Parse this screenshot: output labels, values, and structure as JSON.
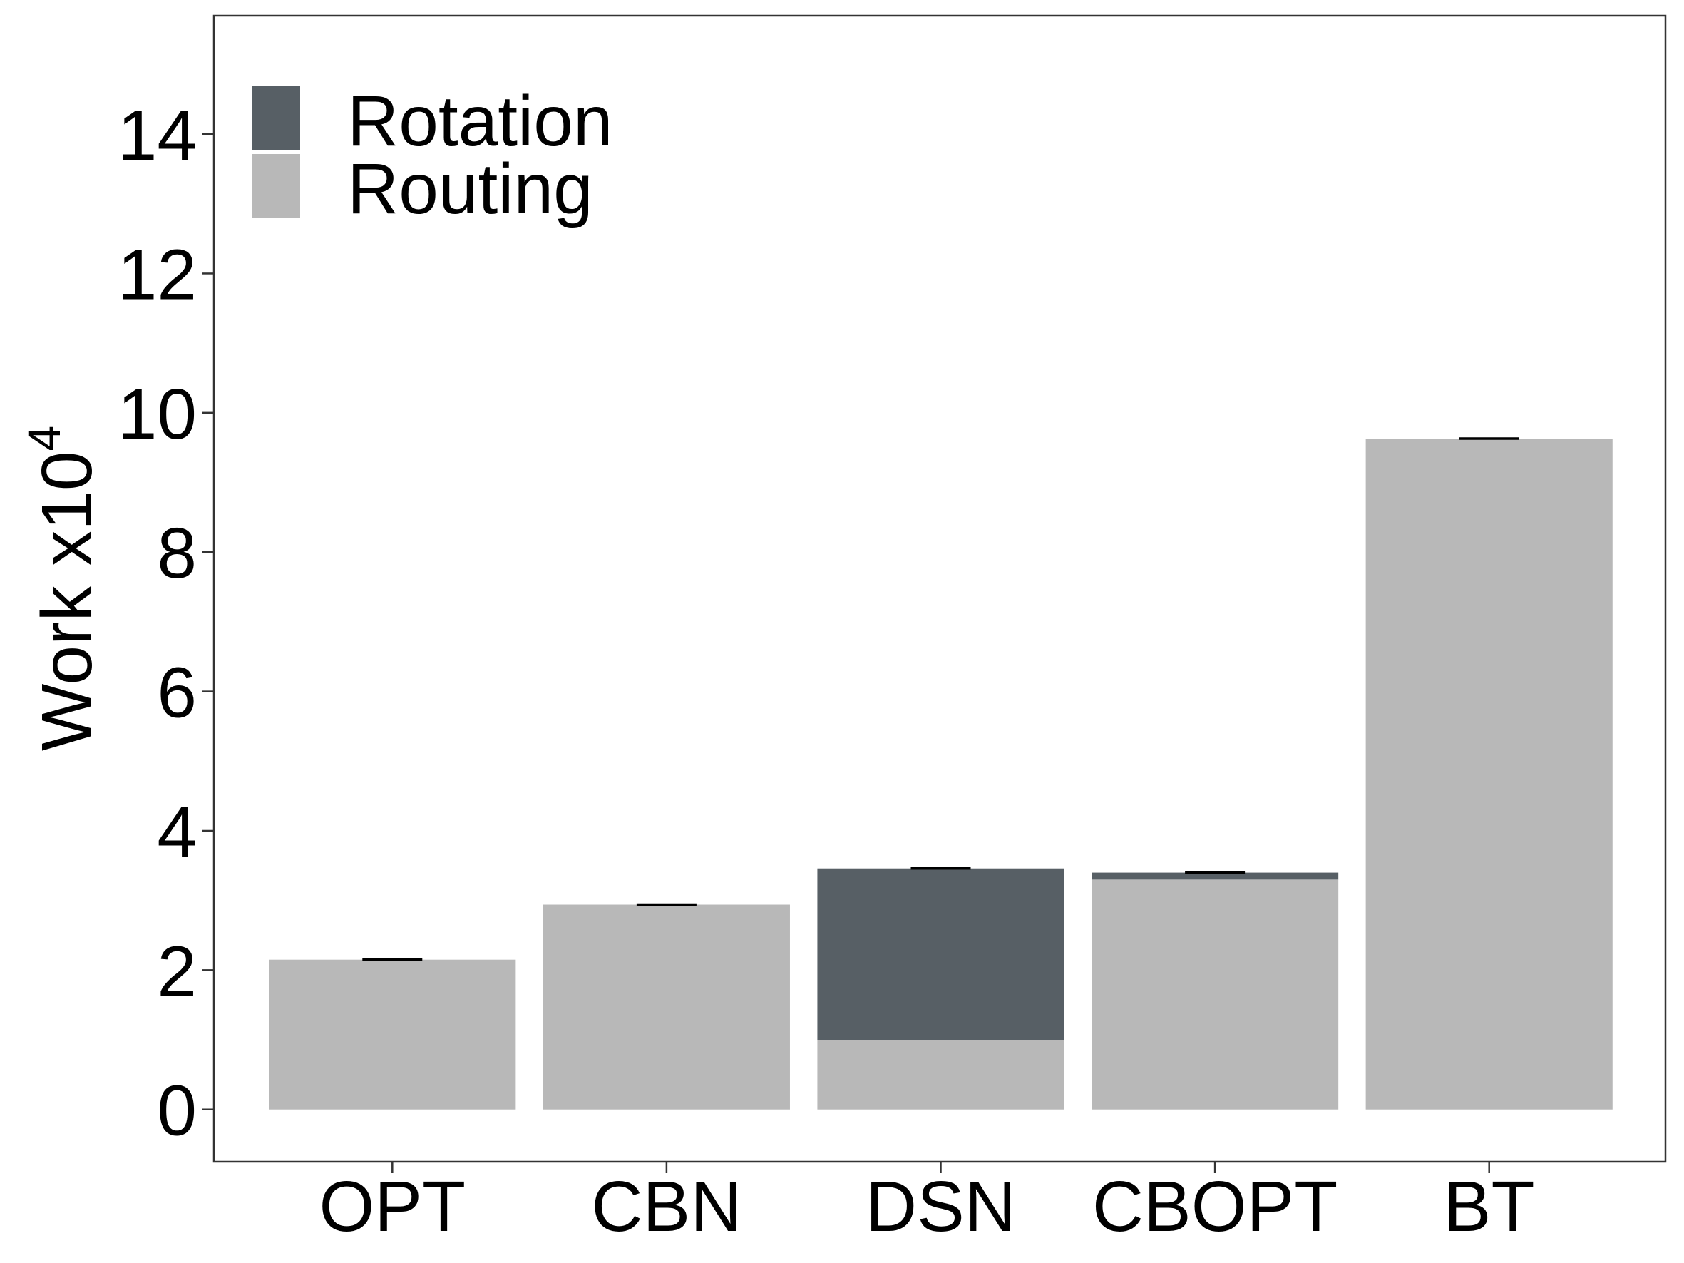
{
  "chart_data": {
    "type": "bar",
    "stacked": true,
    "categories": [
      "OPT",
      "CBN",
      "DSN",
      "CBOPT",
      "BT"
    ],
    "series": [
      {
        "name": "Routing",
        "color": "#b8b8b8",
        "values": [
          2.15,
          2.94,
          1.0,
          3.3,
          9.62
        ]
      },
      {
        "name": "Rotation",
        "color": "#575f65",
        "values": [
          0.0,
          0.0,
          2.46,
          0.1,
          0.0
        ]
      }
    ],
    "error_caps": [
      2.15,
      2.94,
      3.46,
      3.4,
      9.63
    ],
    "ylabel": "Work x10",
    "ylabel_superscript": "4",
    "xlabel": "",
    "ylim": [
      -0.75,
      15.7
    ],
    "yticks": [
      0,
      2,
      4,
      6,
      8,
      10,
      12,
      14
    ],
    "grid": false,
    "legend": {
      "placement": "top-left",
      "entries": [
        {
          "label": "Rotation",
          "color": "#575f65"
        },
        {
          "label": "Routing",
          "color": "#b8b8b8"
        }
      ]
    }
  }
}
